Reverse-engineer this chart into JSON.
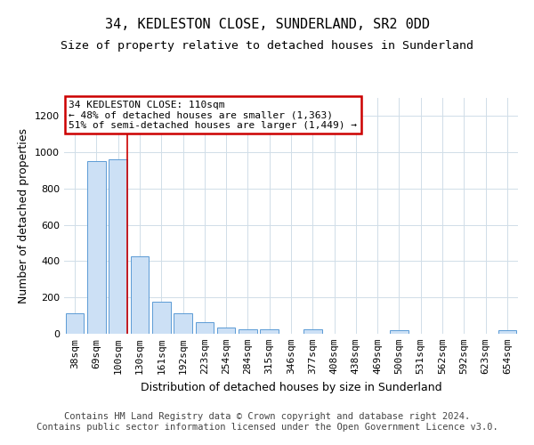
{
  "title": "34, KEDLESTON CLOSE, SUNDERLAND, SR2 0DD",
  "subtitle": "Size of property relative to detached houses in Sunderland",
  "xlabel": "Distribution of detached houses by size in Sunderland",
  "ylabel": "Number of detached properties",
  "footer_line1": "Contains HM Land Registry data © Crown copyright and database right 2024.",
  "footer_line2": "Contains public sector information licensed under the Open Government Licence v3.0.",
  "categories": [
    "38sqm",
    "69sqm",
    "100sqm",
    "130sqm",
    "161sqm",
    "192sqm",
    "223sqm",
    "254sqm",
    "284sqm",
    "315sqm",
    "346sqm",
    "377sqm",
    "408sqm",
    "438sqm",
    "469sqm",
    "500sqm",
    "531sqm",
    "562sqm",
    "592sqm",
    "623sqm",
    "654sqm"
  ],
  "values": [
    115,
    950,
    960,
    425,
    175,
    115,
    65,
    35,
    25,
    25,
    0,
    25,
    0,
    0,
    0,
    18,
    0,
    0,
    0,
    0,
    18
  ],
  "bar_color": "#cce0f5",
  "bar_edge_color": "#5b9bd5",
  "red_line_index": 2,
  "red_line_color": "#cc0000",
  "annotation_text": "34 KEDLESTON CLOSE: 110sqm\n← 48% of detached houses are smaller (1,363)\n51% of semi-detached houses are larger (1,449) →",
  "annotation_box_color": "#ffffff",
  "annotation_box_edge": "#cc0000",
  "ylim": [
    0,
    1300
  ],
  "yticks": [
    0,
    200,
    400,
    600,
    800,
    1000,
    1200
  ],
  "background_color": "#ffffff",
  "grid_color": "#d0dde8",
  "title_fontsize": 11,
  "subtitle_fontsize": 9.5,
  "axis_label_fontsize": 9,
  "tick_fontsize": 8,
  "footer_fontsize": 7.5,
  "annotation_fontsize": 8
}
